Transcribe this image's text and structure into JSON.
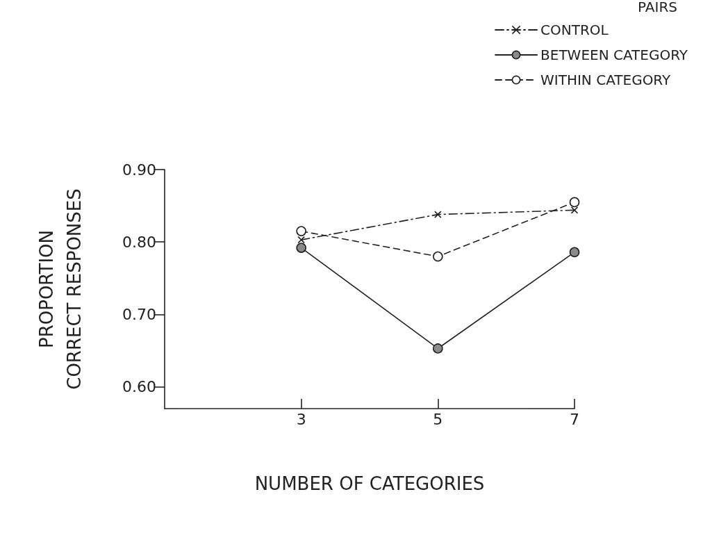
{
  "chart_data": {
    "type": "line",
    "xlabel": "NUMBER OF CATEGORIES",
    "ylabel": "PROPORTION\nCORRECT RESPONSES",
    "legend_title": "PAIRS",
    "legend": "top right",
    "grid": false,
    "x": [
      3,
      5,
      7
    ],
    "xlim": [
      1,
      7
    ],
    "xticks": [
      3,
      5,
      7
    ],
    "ylim": [
      0.57,
      0.9
    ],
    "yticks": [
      {
        "value": 0.6,
        "label": "0.60"
      },
      {
        "value": 0.7,
        "label": "0.70"
      },
      {
        "value": 0.8,
        "label": "0.80"
      },
      {
        "value": 0.9,
        "label": "0.90"
      }
    ],
    "series": [
      {
        "name": "CONTROL",
        "color": "#222222",
        "marker": "cross",
        "line_style": "dashdot",
        "values": [
          0.803,
          0.838,
          0.844
        ]
      },
      {
        "name": "BETWEEN CATEGORY",
        "color": "#222222",
        "marker": "circle",
        "colors": [
          "#8a8a8a",
          "#8a8a8a",
          "#8a8a8a"
        ],
        "line_style": "solid",
        "values": [
          0.792,
          0.653,
          0.786
        ]
      },
      {
        "name": "WITHIN CATEGORY",
        "color": "#222222",
        "marker": "circle",
        "line_style": "dashed",
        "values": [
          0.815,
          0.78,
          0.855
        ]
      }
    ]
  }
}
